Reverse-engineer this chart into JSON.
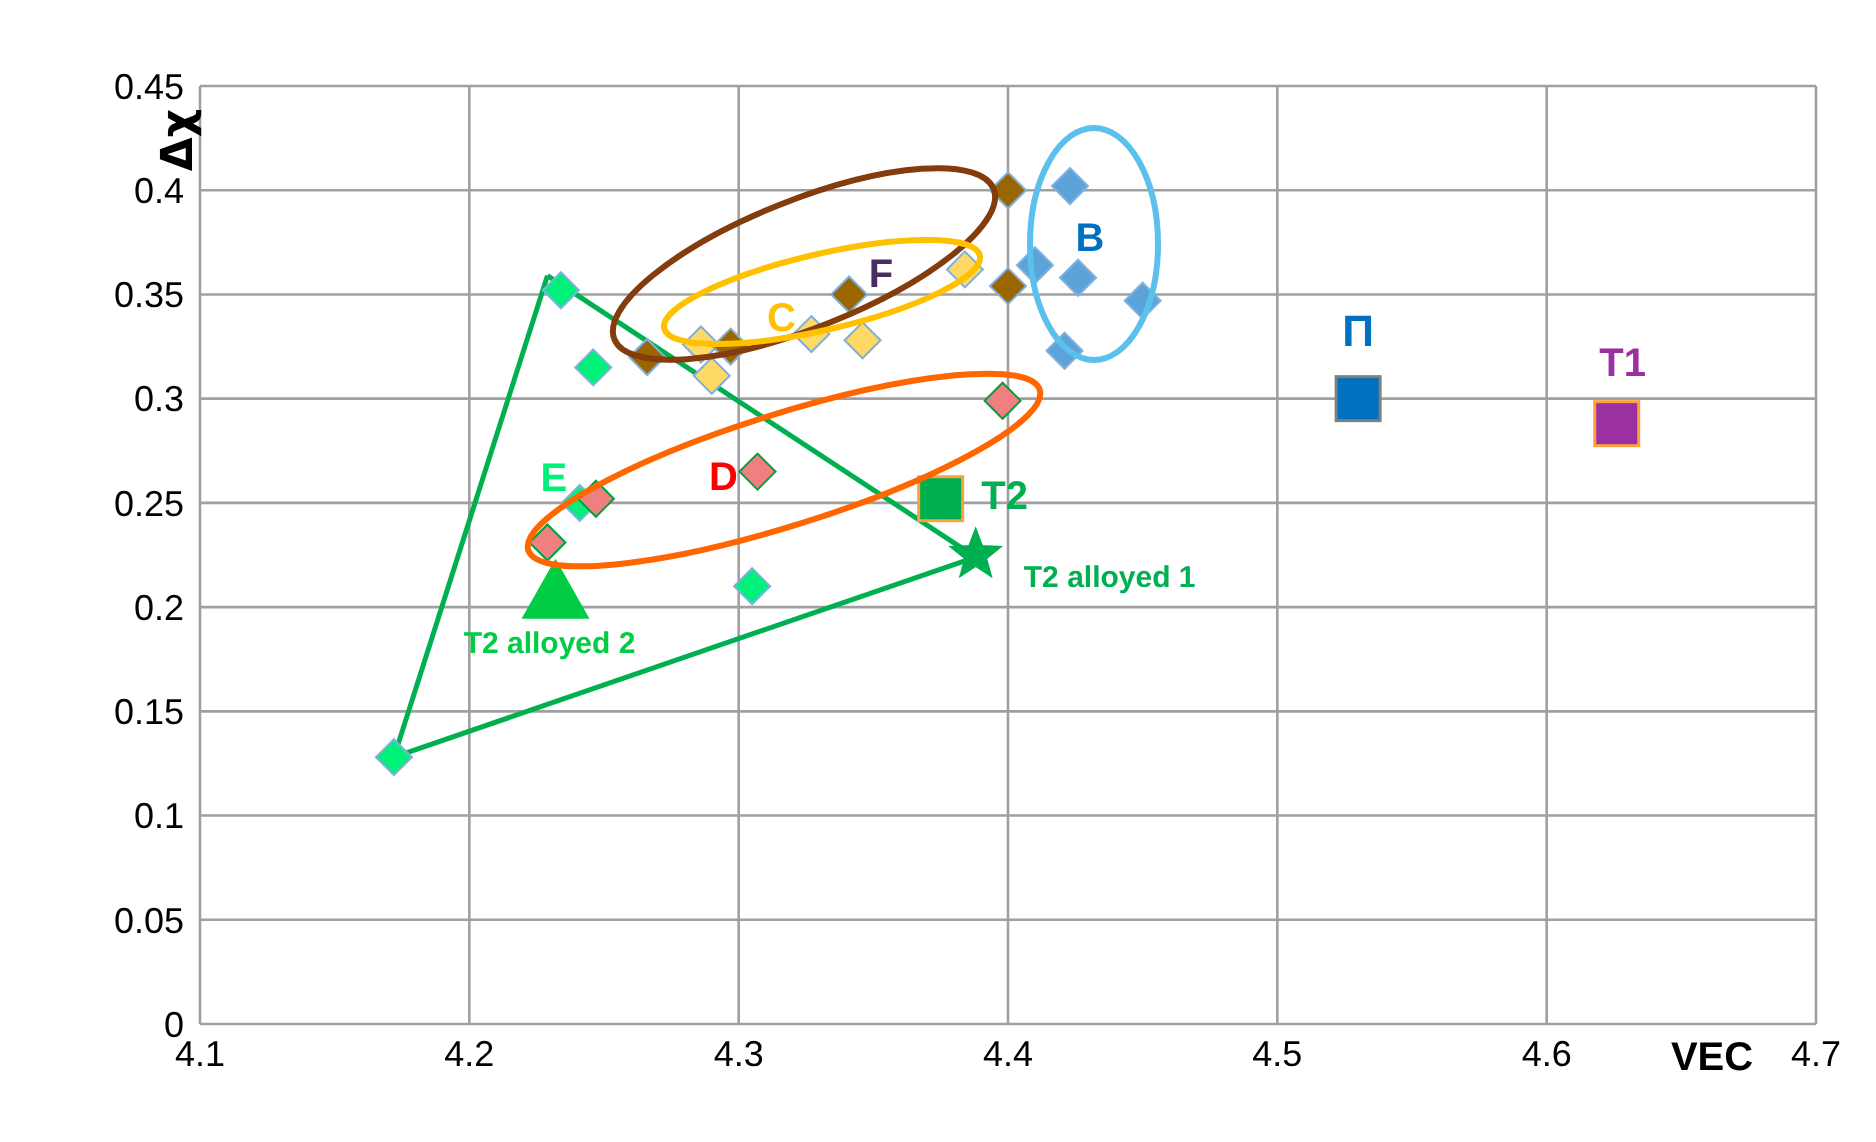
{
  "chart_data": {
    "type": "scatter",
    "xlabel": "VEC",
    "ylabel": "Δχ",
    "xlim": [
      4.1,
      4.7
    ],
    "ylim": [
      0,
      0.45
    ],
    "xticks": [
      4.1,
      4.2,
      4.3,
      4.4,
      4.5,
      4.6,
      4.7
    ],
    "yticks": [
      0,
      0.05,
      0.1,
      0.15,
      0.2,
      0.25,
      0.3,
      0.35,
      0.4,
      0.45
    ],
    "grid": true,
    "legend": false,
    "series": [
      {
        "name": "E",
        "color": "#00f07a",
        "marker": "diamond",
        "x": [
          4.241,
          4.172,
          4.234,
          4.246,
          4.305
        ],
        "values": [
          0.25,
          0.128,
          0.352,
          0.315,
          0.21
        ]
      },
      {
        "name": "D",
        "color": "#f08080",
        "marker": "diamond",
        "x": [
          4.307,
          4.229,
          4.247,
          4.398
        ],
        "values": [
          0.265,
          0.231,
          0.252,
          0.299
        ]
      },
      {
        "name": "C",
        "color": "#ffd966",
        "marker": "diamond",
        "x": [
          4.327,
          4.286,
          4.29,
          4.346,
          4.384
        ],
        "values": [
          0.331,
          0.326,
          0.311,
          0.328,
          0.362
        ]
      },
      {
        "name": "F",
        "color": "#996600",
        "marker": "diamond",
        "x": [
          4.341,
          4.266,
          4.297,
          4.4,
          4.4
        ],
        "values": [
          0.35,
          0.32,
          0.325,
          0.4,
          0.354
        ]
      },
      {
        "name": "B",
        "color": "#5ba3d9",
        "marker": "diamond",
        "x": [
          4.423,
          4.41,
          4.426,
          4.45,
          4.421
        ],
        "values": [
          0.402,
          0.364,
          0.358,
          0.347,
          0.323
        ]
      },
      {
        "name": "T2",
        "color": "#00b050",
        "marker": "square",
        "x": [
          4.375
        ],
        "values": [
          0.252
        ]
      },
      {
        "name": "T2 alloyed 1",
        "color": "#00b050",
        "marker": "star",
        "x": [
          4.388
        ],
        "values": [
          0.225
        ]
      },
      {
        "name": "T2 alloyed 2",
        "color": "#00cc44",
        "marker": "triangle",
        "x": [
          4.232
        ],
        "values": [
          0.204
        ]
      },
      {
        "name": "Π",
        "color": "#0070c0",
        "marker": "square",
        "x": [
          4.53
        ],
        "values": [
          0.3
        ]
      },
      {
        "name": "T1",
        "color": "#9b30a0",
        "marker": "square",
        "x": [
          4.626
        ],
        "values": [
          0.288
        ]
      },
      {
        "type": "line",
        "color": "#00b050",
        "marker": "none",
        "x": [
          4.172,
          4.229
        ],
        "values": [
          0.128,
          0.359
        ]
      },
      {
        "type": "line",
        "color": "#00b050",
        "marker": "none",
        "x": [
          4.229,
          4.388
        ],
        "values": [
          0.359,
          0.224
        ]
      },
      {
        "type": "line",
        "color": "#00b050",
        "marker": "none",
        "x": [
          4.172,
          4.388
        ],
        "values": [
          0.128,
          0.224
        ]
      }
    ]
  }
}
